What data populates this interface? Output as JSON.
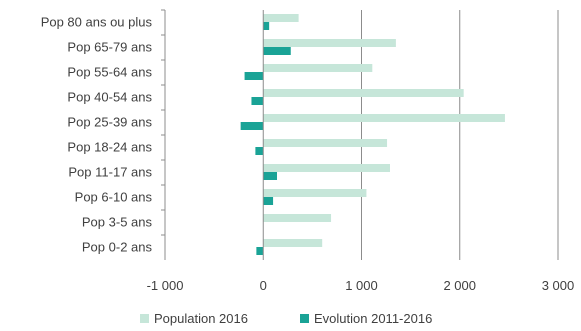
{
  "chart_data": {
    "type": "bar",
    "orientation": "horizontal",
    "categories": [
      "Pop 80 ans ou plus",
      "Pop 65-79 ans",
      "Pop 55-64 ans",
      "Pop 40-54 ans",
      "Pop 25-39 ans",
      "Pop 18-24 ans",
      "Pop 11-17 ans",
      "Pop 6-10 ans",
      "Pop 3-5 ans",
      "Pop 0-2 ans"
    ],
    "series": [
      {
        "name": "Population 2016",
        "color": "#c6e6d9",
        "values": [
          360,
          1350,
          1110,
          2040,
          2460,
          1260,
          1290,
          1050,
          690,
          600
        ]
      },
      {
        "name": "Evolution 2011-2016",
        "color": "#1aa396",
        "values": [
          60,
          280,
          -190,
          -120,
          -230,
          -80,
          140,
          100,
          0,
          -70
        ]
      }
    ],
    "xlim": [
      -1000,
      3000
    ],
    "xticks": [
      -1000,
      0,
      1000,
      2000,
      3000
    ],
    "xtick_labels": [
      "-1 000",
      "0",
      "1 000",
      "2 000",
      "3 000"
    ],
    "grid": "vertical",
    "legend_position": "bottom"
  }
}
